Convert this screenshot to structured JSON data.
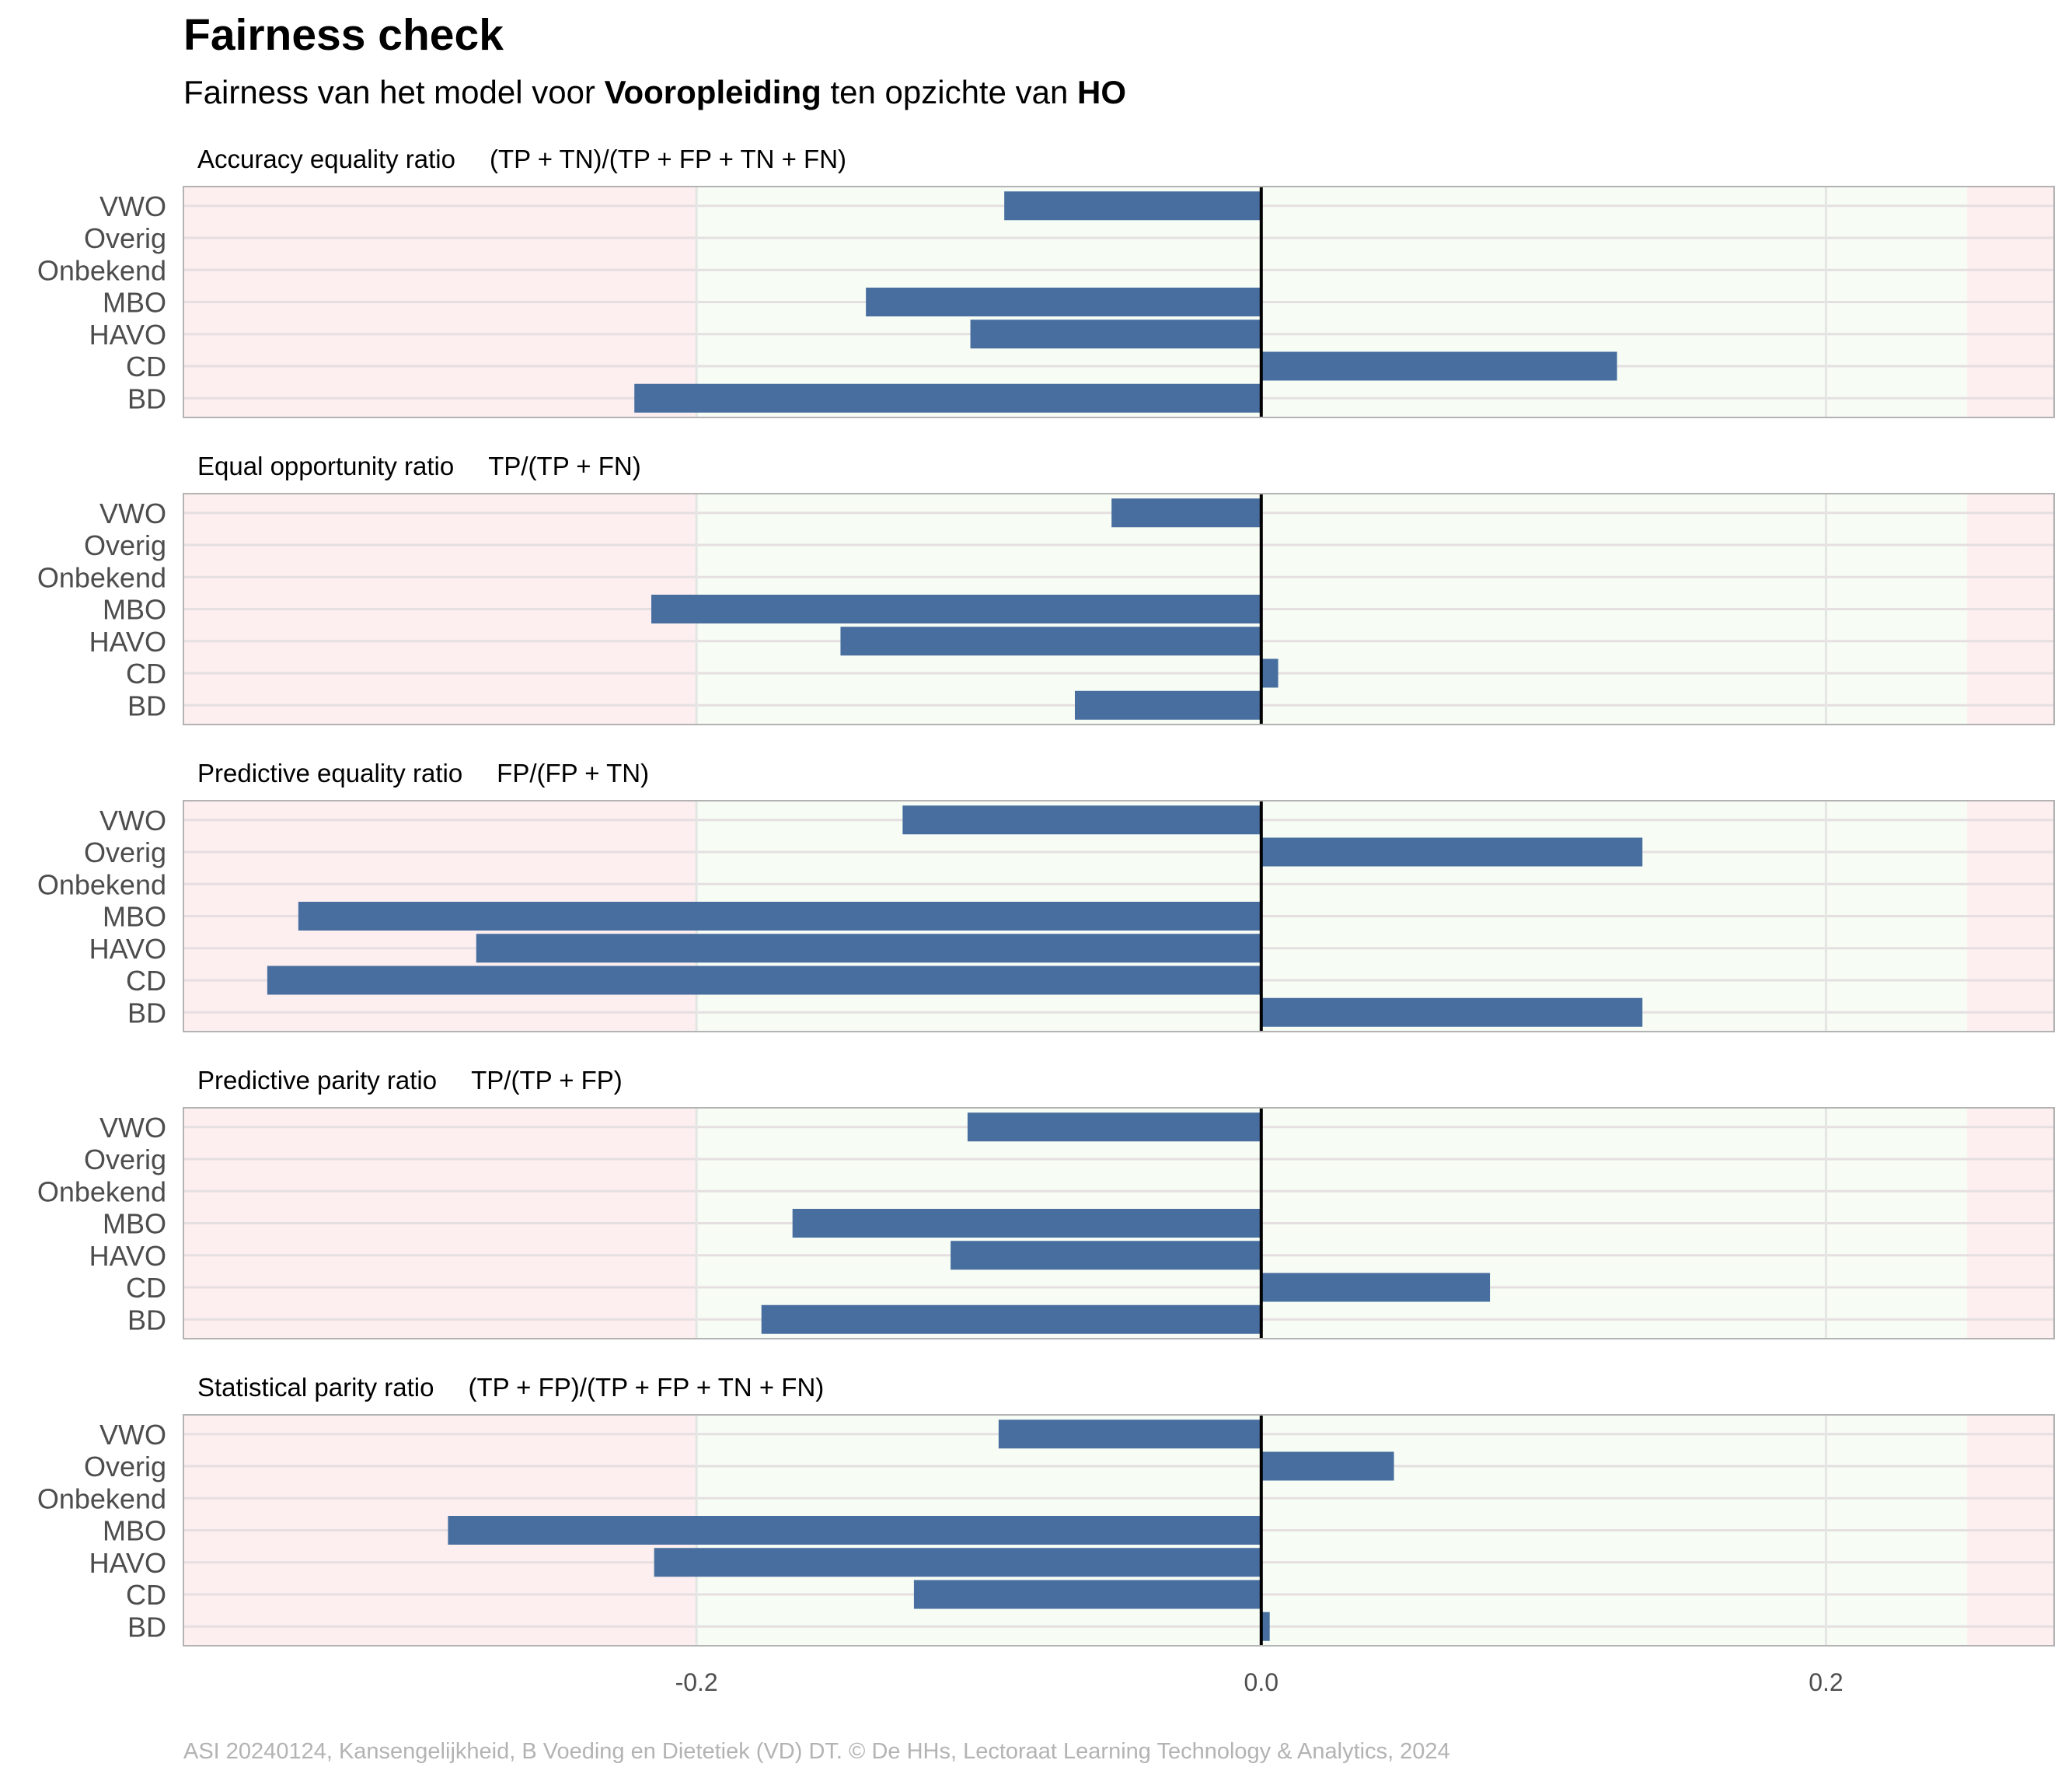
{
  "chart_data": {
    "type": "bar",
    "orientation": "horizontal",
    "title": "Fairness check",
    "subtitle": {
      "parts": [
        {
          "text": "Fairness van het model voor ",
          "bold": false
        },
        {
          "text": "Vooropleiding",
          "bold": true
        },
        {
          "text": " ten opzichte van ",
          "bold": false
        },
        {
          "text": "HO",
          "bold": true
        }
      ]
    },
    "caption": "ASI 20240124, Kansengelijkheid, B Voeding en Dietetiek (VD) DT. © De HHs, Lectoraat Learning Technology & Analytics, 2024",
    "categories": [
      "VWO",
      "Overig",
      "Onbekend",
      "MBO",
      "HAVO",
      "CD",
      "BD"
    ],
    "xlim": [
      -0.3817,
      0.2808
    ],
    "x_ticks": [
      -0.2,
      0.0,
      0.2
    ],
    "x_tick_labels": [
      "-0.2",
      "0.0",
      "0.2"
    ],
    "fair_band": [
      -0.2,
      0.25
    ],
    "grid": true,
    "colors": {
      "bar": "#476e9e",
      "fair_band": "#f7fcf5",
      "unfair_band": "#fdeef0",
      "zero_line": "#000000",
      "panel_border": "#b3b3b3"
    },
    "panels": [
      {
        "metric": "Accuracy equality ratio",
        "formula": "(TP + TN)/(TP + FP + TN + FN)",
        "values": {
          "VWO": -0.091,
          "Overig": null,
          "Onbekend": null,
          "MBO": -0.14,
          "HAVO": -0.103,
          "CD": 0.126,
          "BD": -0.222
        }
      },
      {
        "metric": "Equal opportunity ratio",
        "formula": "TP/(TP + FN)",
        "values": {
          "VWO": -0.053,
          "Overig": null,
          "Onbekend": null,
          "MBO": -0.216,
          "HAVO": -0.149,
          "CD": 0.006,
          "BD": -0.066
        }
      },
      {
        "metric": "Predictive equality ratio",
        "formula": "FP/(FP + TN)",
        "values": {
          "VWO": -0.127,
          "Overig": 0.135,
          "Onbekend": null,
          "MBO": -0.341,
          "HAVO": -0.278,
          "CD": -0.352,
          "BD": 0.135
        }
      },
      {
        "metric": "Predictive parity ratio",
        "formula": "TP/(TP + FP)",
        "values": {
          "VWO": -0.104,
          "Overig": null,
          "Onbekend": null,
          "MBO": -0.166,
          "HAVO": -0.11,
          "CD": 0.081,
          "BD": -0.177
        }
      },
      {
        "metric": "Statistical parity ratio",
        "formula": "(TP + FP)/(TP + FP + TN + FN)",
        "values": {
          "VWO": -0.093,
          "Overig": 0.047,
          "Onbekend": null,
          "MBO": -0.288,
          "HAVO": -0.215,
          "CD": -0.123,
          "BD": 0.003
        }
      }
    ]
  }
}
